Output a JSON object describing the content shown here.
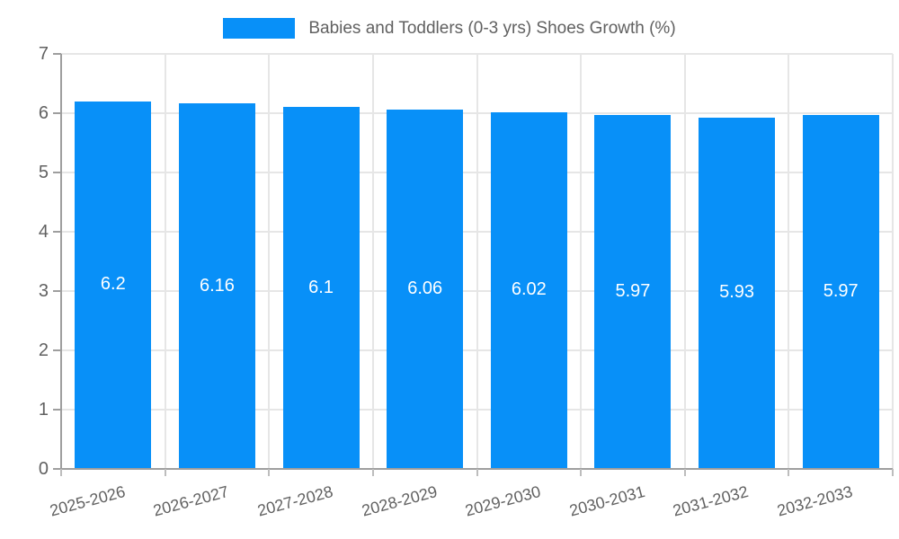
{
  "chart_data": {
    "type": "bar",
    "title": "Babies and Toddlers (0-3 yrs) Shoes Growth (%)",
    "legend_position": "top",
    "categories": [
      "2025-2026",
      "2026-2027",
      "2027-2028",
      "2028-2029",
      "2029-2030",
      "2030-2031",
      "2031-2032",
      "2032-2033"
    ],
    "values": [
      6.2,
      6.16,
      6.1,
      6.06,
      6.02,
      5.97,
      5.93,
      5.97
    ],
    "bar_labels": [
      "6.2",
      "6.16",
      "6.1",
      "6.06",
      "6.02",
      "5.97",
      "5.93",
      "5.97"
    ],
    "xlabel": "",
    "ylabel": "",
    "ylim": [
      0,
      7
    ],
    "yticks": [
      "0",
      "1",
      "2",
      "3",
      "4",
      "5",
      "6",
      "7"
    ],
    "grid": true,
    "colors": {
      "bar": "#0890f8",
      "bar_label_text": "#ffffff",
      "axis_text": "#616161",
      "legend_text": "#616161",
      "gridline": "#e6e6e6",
      "axis_line": "#9e9e9e"
    }
  }
}
